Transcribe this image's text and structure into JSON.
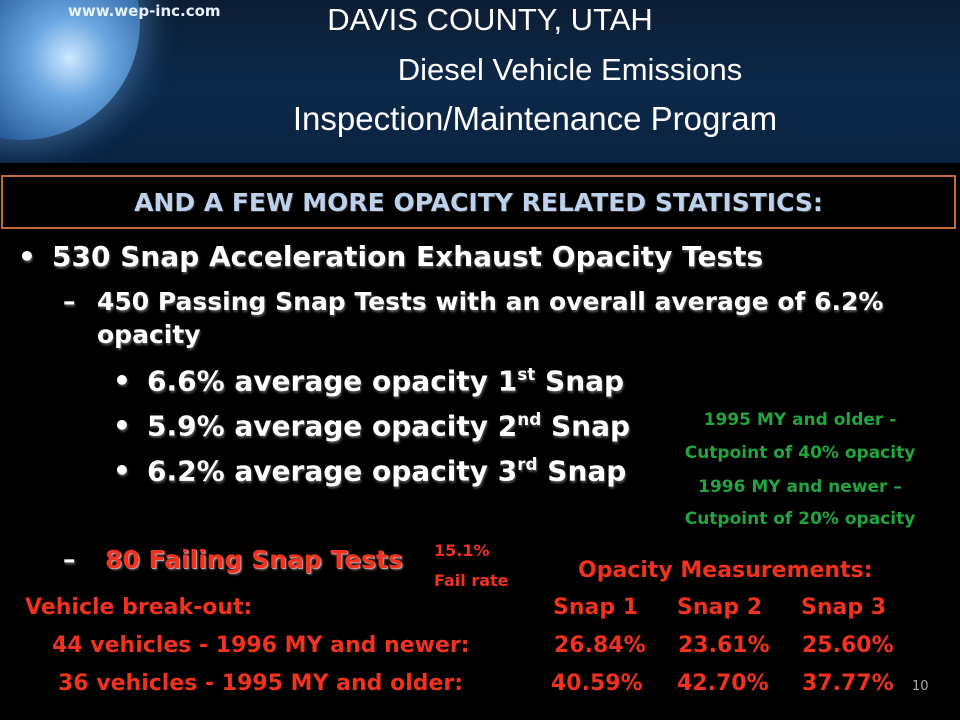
{
  "header": {
    "url": "www.wep-inc.com",
    "title_line1": "DAVIS COUNTY, UTAH",
    "title_line2": "Diesel Vehicle Emissions",
    "title_line3": "Inspection/Maintenance Program"
  },
  "banner": "AND A FEW MORE OPACITY RELATED STATISTICS:",
  "bullets": {
    "main": "530 Snap Acceleration Exhaust Opacity Tests",
    "passing_line1": "450 Passing Snap Tests with an overall average of 6.2%",
    "passing_line2": "opacity",
    "snaps": [
      {
        "text": "6.6% average opacity 1",
        "sup": "st",
        "suffix": " Snap"
      },
      {
        "text": "5.9% average opacity 2",
        "sup": "nd",
        "suffix": " Snap"
      },
      {
        "text": "6.2% average opacity 3",
        "sup": "rd",
        "suffix": " Snap"
      }
    ],
    "failing": "80 Failing Snap Tests",
    "fail_rate_value": "15.1%",
    "fail_rate_label": "Fail rate"
  },
  "cutpoints": [
    "1995 MY and older -",
    "Cutpoint of 40% opacity",
    "1996 MY and newer –",
    "Cutpoint of 20% opacity"
  ],
  "measurements": {
    "title": "Opacity Measurements:",
    "breakout_label": "Vehicle break-out:",
    "columns": [
      "Snap 1",
      "Snap 2",
      "Snap 3"
    ],
    "rows": [
      {
        "label": "44 vehicles - 1996 MY and newer:",
        "values": [
          "26.84%",
          "23.61%",
          "25.60%"
        ]
      },
      {
        "label": "36 vehicles - 1995 MY and older:",
        "values": [
          "40.59%",
          "42.70%",
          "37.77%"
        ]
      }
    ]
  },
  "page_number": "10"
}
